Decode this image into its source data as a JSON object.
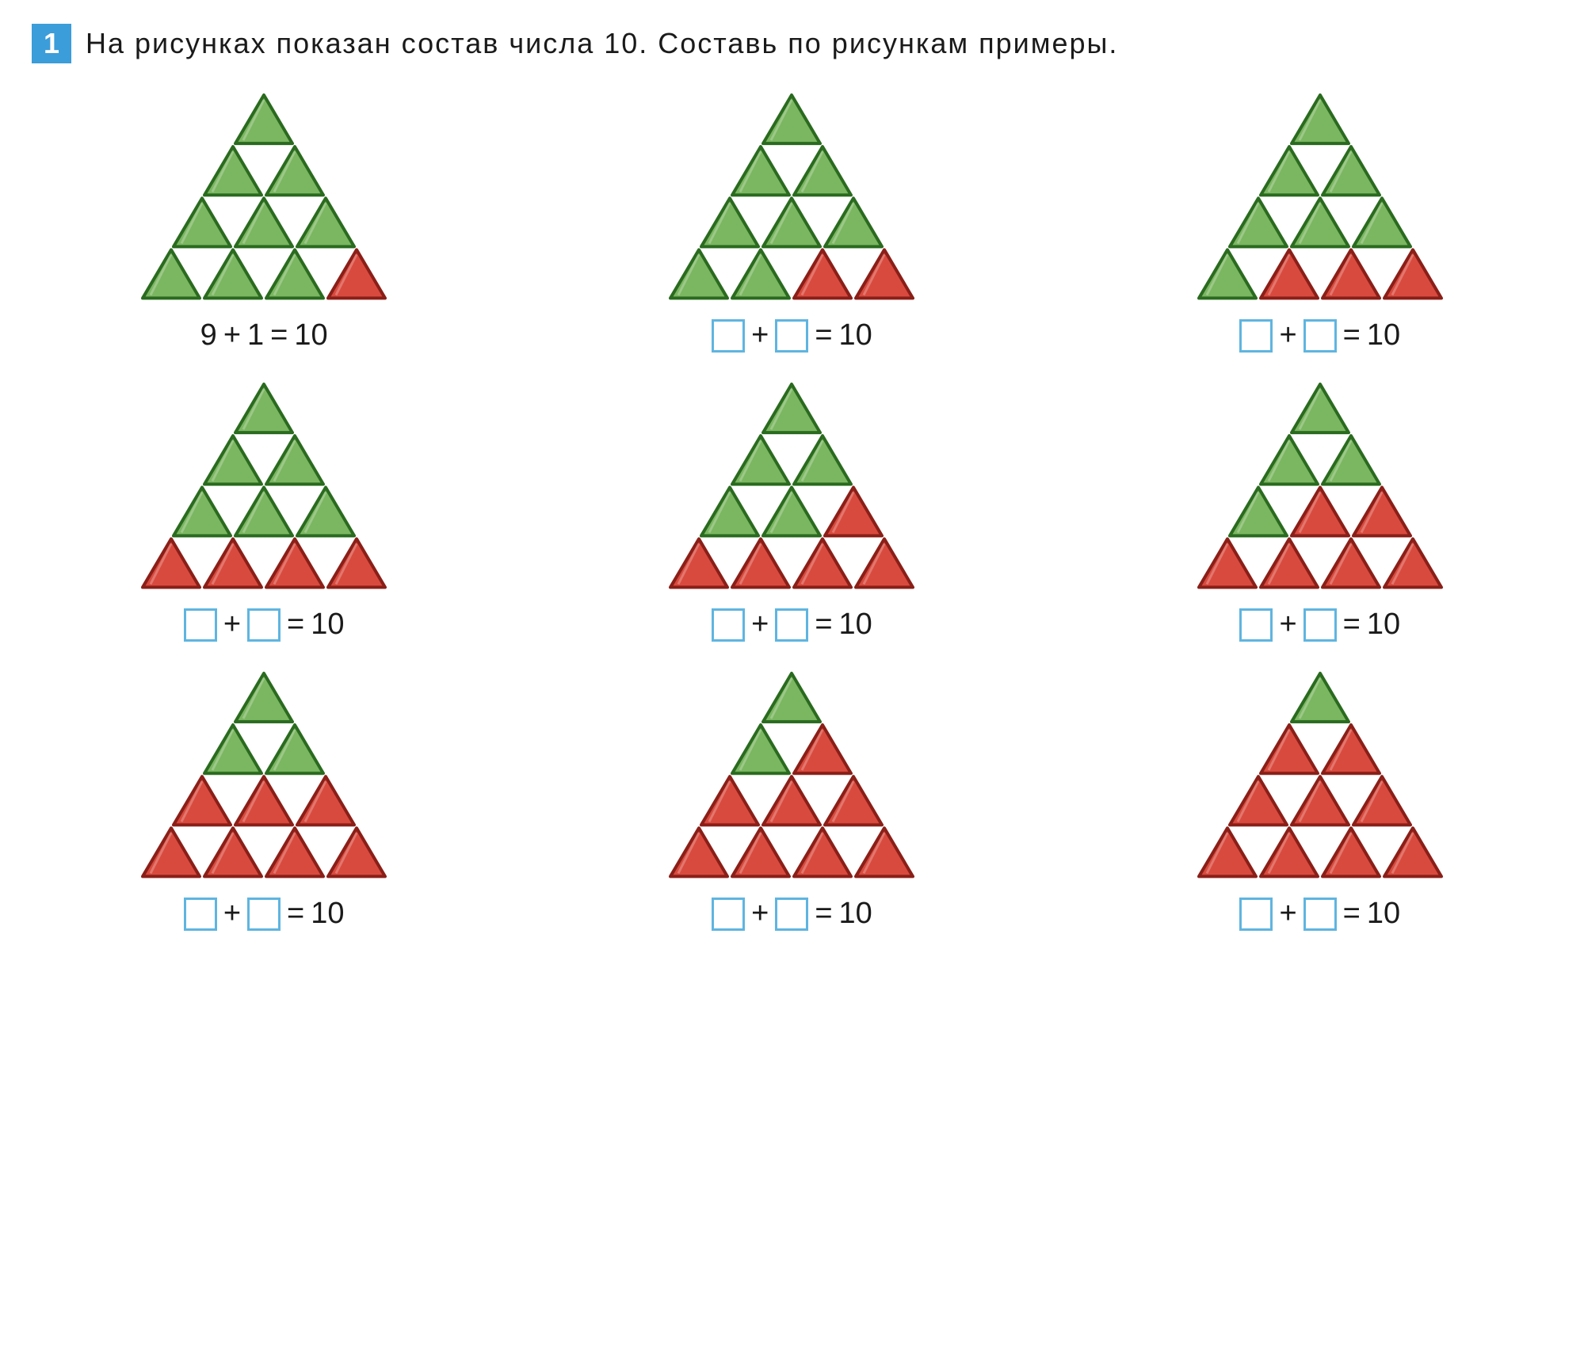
{
  "problem_number": "1",
  "problem_text": "На рисунках показан состав числа 10. Составь по рисункам примеры.",
  "colors": {
    "green_fill": "#7bb661",
    "green_stroke": "#2a6b1f",
    "red_fill": "#d94a3e",
    "red_stroke": "#8a1f18",
    "box_border": "#5fb5e0",
    "header_bg": "#3b9dd9",
    "text": "#1a1a1a"
  },
  "triangle_size": 72,
  "pyramids": [
    {
      "green": 9,
      "red": 1,
      "show_filled": true,
      "a": "9",
      "b": "1",
      "result": "10"
    },
    {
      "green": 8,
      "red": 2,
      "show_filled": false,
      "a": "",
      "b": "",
      "result": "10"
    },
    {
      "green": 7,
      "red": 3,
      "show_filled": false,
      "a": "",
      "b": "",
      "result": "10"
    },
    {
      "green": 6,
      "red": 4,
      "show_filled": false,
      "a": "",
      "b": "",
      "result": "10"
    },
    {
      "green": 5,
      "red": 5,
      "show_filled": false,
      "a": "",
      "b": "",
      "result": "10"
    },
    {
      "green": 4,
      "red": 6,
      "show_filled": false,
      "a": "",
      "b": "",
      "result": "10"
    },
    {
      "green": 3,
      "red": 7,
      "show_filled": false,
      "a": "",
      "b": "",
      "result": "10"
    },
    {
      "green": 2,
      "red": 8,
      "show_filled": false,
      "a": "",
      "b": "",
      "result": "10"
    },
    {
      "green": 1,
      "red": 9,
      "show_filled": false,
      "a": "",
      "b": "",
      "result": "10"
    }
  ],
  "labels": {
    "plus": "+",
    "equals": "="
  }
}
